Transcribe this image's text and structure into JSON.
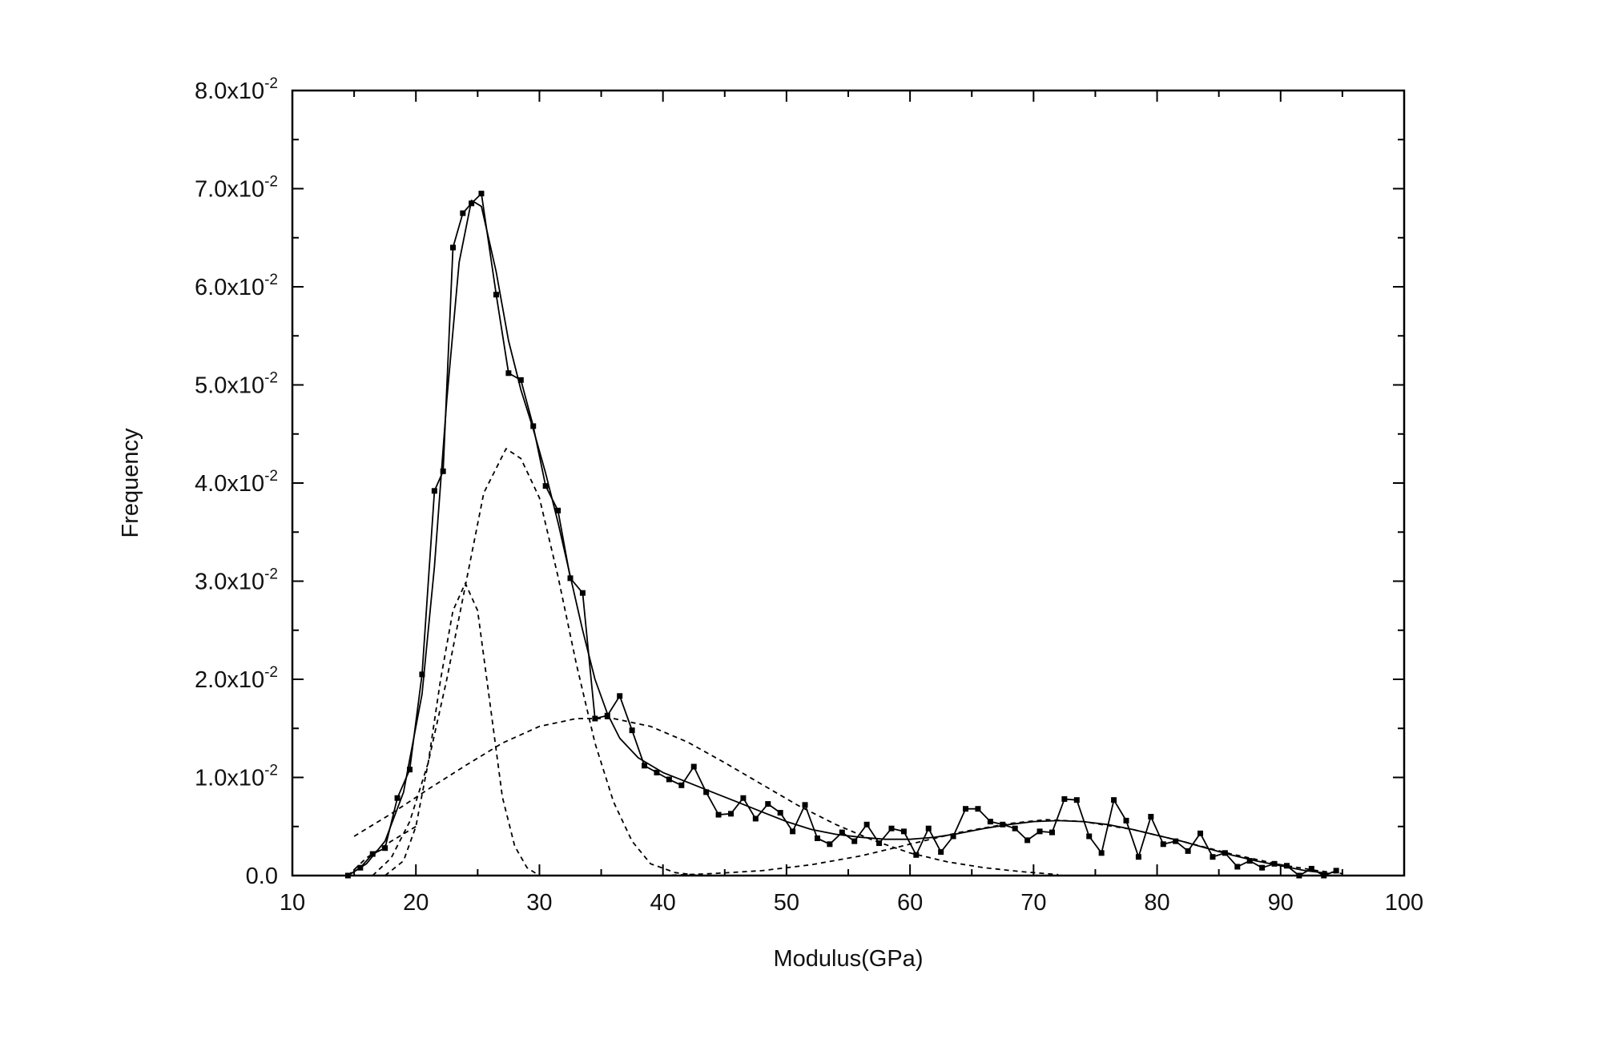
{
  "chart_data": {
    "type": "line",
    "title": "",
    "xlabel": "Modulus(GPa)",
    "ylabel": "Frequency",
    "xlim": [
      10,
      100
    ],
    "ylim": [
      0,
      0.08
    ],
    "x_ticks": [
      "10",
      "20",
      "30",
      "40",
      "50",
      "60",
      "70",
      "80",
      "90",
      "100"
    ],
    "y_ticks": [
      {
        "mantissa": "0.0",
        "exp": ""
      },
      {
        "mantissa": "1.0x10",
        "exp": "-2"
      },
      {
        "mantissa": "2.0x10",
        "exp": "-2"
      },
      {
        "mantissa": "3.0x10",
        "exp": "-2"
      },
      {
        "mantissa": "4.0x10",
        "exp": "-2"
      },
      {
        "mantissa": "5.0x10",
        "exp": "-2"
      },
      {
        "mantissa": "6.0x10",
        "exp": "-2"
      },
      {
        "mantissa": "7.0x10",
        "exp": "-2"
      },
      {
        "mantissa": "8.0x10",
        "exp": "-2"
      }
    ],
    "grid": false,
    "legend": "none",
    "series": [
      {
        "style": "measured-square-markers",
        "points": [
          [
            14.5,
            0.0
          ],
          [
            15.5,
            0.0008
          ],
          [
            16.5,
            0.0022
          ],
          [
            17.5,
            0.0028
          ],
          [
            18.5,
            0.0079
          ],
          [
            19.5,
            0.0108
          ],
          [
            20.5,
            0.0205
          ],
          [
            21.5,
            0.0392
          ],
          [
            22.2,
            0.0412
          ],
          [
            23.0,
            0.064
          ],
          [
            23.8,
            0.0675
          ],
          [
            24.5,
            0.0685
          ],
          [
            25.3,
            0.0695
          ],
          [
            26.5,
            0.0592
          ],
          [
            27.5,
            0.0512
          ],
          [
            28.5,
            0.0505
          ],
          [
            29.5,
            0.0458
          ],
          [
            30.5,
            0.0397
          ],
          [
            31.5,
            0.0372
          ],
          [
            32.5,
            0.0303
          ],
          [
            33.5,
            0.0288
          ],
          [
            34.5,
            0.016
          ],
          [
            35.5,
            0.0163
          ],
          [
            36.5,
            0.0183
          ],
          [
            37.5,
            0.0148
          ],
          [
            38.5,
            0.0112
          ],
          [
            39.5,
            0.0105
          ],
          [
            40.5,
            0.0098
          ],
          [
            41.5,
            0.0092
          ],
          [
            42.5,
            0.0111
          ],
          [
            43.5,
            0.0085
          ],
          [
            44.5,
            0.0062
          ],
          [
            45.5,
            0.0063
          ],
          [
            46.5,
            0.0079
          ],
          [
            47.5,
            0.0058
          ],
          [
            48.5,
            0.0073
          ],
          [
            49.5,
            0.0064
          ],
          [
            50.5,
            0.0045
          ],
          [
            51.5,
            0.0072
          ],
          [
            52.5,
            0.0038
          ],
          [
            53.5,
            0.0032
          ],
          [
            54.5,
            0.0044
          ],
          [
            55.5,
            0.0035
          ],
          [
            56.5,
            0.0052
          ],
          [
            57.5,
            0.0033
          ],
          [
            58.5,
            0.0048
          ],
          [
            59.5,
            0.0045
          ],
          [
            60.5,
            0.0021
          ],
          [
            61.5,
            0.0048
          ],
          [
            62.5,
            0.0024
          ],
          [
            63.5,
            0.004
          ],
          [
            64.5,
            0.0068
          ],
          [
            65.5,
            0.0068
          ],
          [
            66.5,
            0.0055
          ],
          [
            67.5,
            0.0052
          ],
          [
            68.5,
            0.0048
          ],
          [
            69.5,
            0.0036
          ],
          [
            70.5,
            0.0045
          ],
          [
            71.5,
            0.0044
          ],
          [
            72.5,
            0.0078
          ],
          [
            73.5,
            0.0077
          ],
          [
            74.5,
            0.004
          ],
          [
            75.5,
            0.0023
          ],
          [
            76.5,
            0.0077
          ],
          [
            77.5,
            0.0056
          ],
          [
            78.5,
            0.0019
          ],
          [
            79.5,
            0.006
          ],
          [
            80.5,
            0.0032
          ],
          [
            81.5,
            0.0035
          ],
          [
            82.5,
            0.0025
          ],
          [
            83.5,
            0.0043
          ],
          [
            84.5,
            0.0019
          ],
          [
            85.5,
            0.0023
          ],
          [
            86.5,
            0.0009
          ],
          [
            87.5,
            0.0015
          ],
          [
            88.5,
            0.0008
          ],
          [
            89.5,
            0.0012
          ],
          [
            90.5,
            0.001
          ],
          [
            91.5,
            0.0
          ],
          [
            92.5,
            0.0007
          ],
          [
            93.5,
            0.0
          ],
          [
            94.5,
            0.0005
          ]
        ]
      },
      {
        "style": "cumulative-fit-solid",
        "points": [
          [
            14.5,
            0.0
          ],
          [
            16,
            0.0012
          ],
          [
            17.5,
            0.0035
          ],
          [
            19,
            0.0085
          ],
          [
            20.5,
            0.0185
          ],
          [
            21.5,
            0.0315
          ],
          [
            22.5,
            0.0485
          ],
          [
            23.5,
            0.0625
          ],
          [
            24.5,
            0.0688
          ],
          [
            25.3,
            0.0682
          ],
          [
            26.5,
            0.0615
          ],
          [
            27.5,
            0.0545
          ],
          [
            28.5,
            0.0495
          ],
          [
            29.5,
            0.0455
          ],
          [
            30.5,
            0.041
          ],
          [
            31.5,
            0.036
          ],
          [
            32.5,
            0.0305
          ],
          [
            33.5,
            0.025
          ],
          [
            34.5,
            0.02
          ],
          [
            35.5,
            0.0165
          ],
          [
            36.5,
            0.014
          ],
          [
            38,
            0.012
          ],
          [
            40,
            0.0105
          ],
          [
            42,
            0.0095
          ],
          [
            44,
            0.0085
          ],
          [
            46,
            0.0075
          ],
          [
            48,
            0.0065
          ],
          [
            50,
            0.0055
          ],
          [
            52,
            0.0047
          ],
          [
            54,
            0.0042
          ],
          [
            56,
            0.0039
          ],
          [
            58,
            0.0037
          ],
          [
            60,
            0.0037
          ],
          [
            62,
            0.0039
          ],
          [
            64,
            0.0043
          ],
          [
            66,
            0.0048
          ],
          [
            68,
            0.0052
          ],
          [
            70,
            0.0055
          ],
          [
            72,
            0.0056
          ],
          [
            74,
            0.0055
          ],
          [
            76,
            0.0052
          ],
          [
            78,
            0.0047
          ],
          [
            80,
            0.0041
          ],
          [
            82,
            0.0035
          ],
          [
            84,
            0.0028
          ],
          [
            86,
            0.0021
          ],
          [
            88,
            0.0015
          ],
          [
            90,
            0.001
          ],
          [
            92,
            0.0005
          ],
          [
            94,
            0.0002
          ]
        ]
      },
      {
        "style": "component-dashed",
        "points": [
          [
            17.5,
            0.0
          ],
          [
            19,
            0.0015
          ],
          [
            20,
            0.005
          ],
          [
            21,
            0.0115
          ],
          [
            22,
            0.02
          ],
          [
            23,
            0.027
          ],
          [
            24,
            0.0298
          ],
          [
            25,
            0.027
          ],
          [
            26,
            0.0175
          ],
          [
            27,
            0.008
          ],
          [
            28,
            0.003
          ],
          [
            29,
            0.0008
          ],
          [
            30,
            0.0
          ]
        ]
      },
      {
        "style": "component-dashed",
        "points": [
          [
            16.5,
            0.0
          ],
          [
            18,
            0.0018
          ],
          [
            19.5,
            0.0055
          ],
          [
            21,
            0.0115
          ],
          [
            22.5,
            0.02
          ],
          [
            24,
            0.0295
          ],
          [
            25.5,
            0.039
          ],
          [
            27.3,
            0.0435
          ],
          [
            28.5,
            0.0425
          ],
          [
            30,
            0.0385
          ],
          [
            31.5,
            0.0305
          ],
          [
            33,
            0.0215
          ],
          [
            34.5,
            0.0135
          ],
          [
            36,
            0.0075
          ],
          [
            37.5,
            0.0035
          ],
          [
            39,
            0.0012
          ],
          [
            41,
            0.0003
          ],
          [
            43,
            0.0
          ]
        ]
      },
      {
        "style": "component-dashed",
        "points": [
          [
            15,
            0.004
          ],
          [
            18,
            0.0063
          ],
          [
            21,
            0.0088
          ],
          [
            24,
            0.0112
          ],
          [
            27,
            0.0135
          ],
          [
            30,
            0.0152
          ],
          [
            33,
            0.016
          ],
          [
            36,
            0.016
          ],
          [
            39,
            0.0152
          ],
          [
            42,
            0.0136
          ],
          [
            45,
            0.0115
          ],
          [
            48,
            0.0093
          ],
          [
            51,
            0.0071
          ],
          [
            54,
            0.0052
          ],
          [
            57,
            0.0036
          ],
          [
            60,
            0.0023
          ],
          [
            63,
            0.0014
          ],
          [
            66,
            0.0008
          ],
          [
            69,
            0.0004
          ],
          [
            72,
            0.0001
          ]
        ]
      },
      {
        "style": "component-dashed",
        "points": [
          [
            40,
            0.0
          ],
          [
            44,
            0.0002
          ],
          [
            48,
            0.0005
          ],
          [
            52,
            0.0011
          ],
          [
            56,
            0.002
          ],
          [
            60,
            0.0032
          ],
          [
            64,
            0.0044
          ],
          [
            68,
            0.0053
          ],
          [
            71,
            0.0057
          ],
          [
            74,
            0.0055
          ],
          [
            78,
            0.0047
          ],
          [
            82,
            0.0035
          ],
          [
            86,
            0.0022
          ],
          [
            90,
            0.0011
          ],
          [
            93,
            0.0005
          ],
          [
            95,
            0.0002
          ]
        ]
      },
      {
        "style": "component-dashed",
        "points": [
          [
            14.5,
            0.0
          ],
          [
            16,
            0.0018
          ],
          [
            18,
            0.0035
          ],
          [
            20,
            0.005
          ]
        ]
      }
    ]
  }
}
